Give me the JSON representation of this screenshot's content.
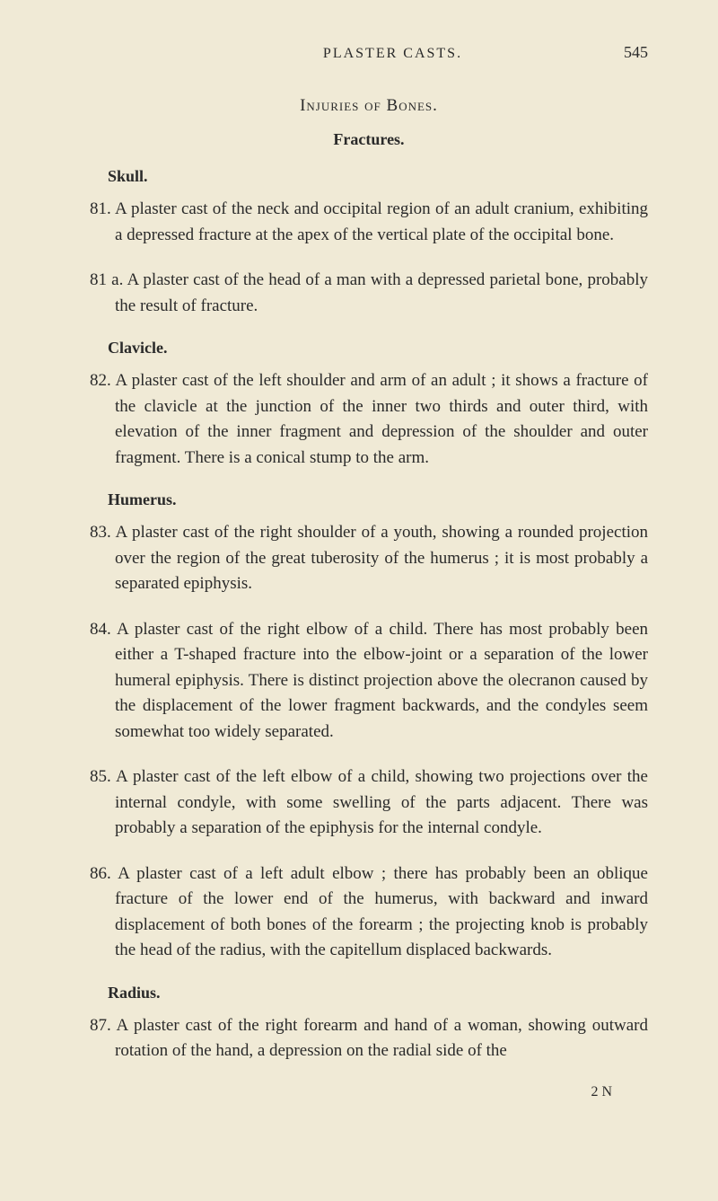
{
  "header": {
    "running_head": "PLASTER CASTS.",
    "page_number": "545"
  },
  "section_title": "Injuries of Bones.",
  "subsection_title": "Fractures.",
  "groups": [
    {
      "heading": "Skull.",
      "entries": [
        {
          "num": "81.",
          "text": "A plaster cast of the neck and occipital region of an adult cranium, exhibiting a depressed fracture at the apex of the vertical plate of the occipital bone."
        },
        {
          "num": "81 a.",
          "text": "A plaster cast of the head of a man with a depressed parietal bone, probably the result of fracture."
        }
      ]
    },
    {
      "heading": "Clavicle.",
      "entries": [
        {
          "num": "82.",
          "text": "A plaster cast of the left shoulder and arm of an adult ; it shows a fracture of the clavicle at the junction of the inner two thirds and outer third, with elevation of the inner fragment and depression of the shoulder and outer fragment. There is a conical stump to the arm."
        }
      ]
    },
    {
      "heading": "Humerus.",
      "entries": [
        {
          "num": "83.",
          "text": "A plaster cast of the right shoulder of a youth, showing a rounded projection over the region of the great tuberosity of the humerus ; it is most probably a separated epiphysis."
        },
        {
          "num": "84.",
          "text": "A plaster cast of the right elbow of a child. There has most probably been either a T-shaped fracture into the elbow-joint or a separation of the lower humeral epiphysis. There is distinct projection above the olecranon caused by the displacement of the lower fragment backwards, and the condyles seem somewhat too widely separated."
        },
        {
          "num": "85.",
          "text": "A plaster cast of the left elbow of a child, showing two projections over the internal condyle, with some swelling of the parts adjacent. There was probably a separation of the epiphysis for the internal condyle."
        },
        {
          "num": "86.",
          "text": "A plaster cast of a left adult elbow ; there has probably been an oblique fracture of the lower end of the humerus, with backward and inward displacement of both bones of the forearm ; the projecting knob is probably the head of the radius, with the capitellum displaced backwards."
        }
      ]
    },
    {
      "heading": "Radius.",
      "entries": [
        {
          "num": "87.",
          "text": "A plaster cast of the right forearm and hand of a woman, showing outward rotation of the hand, a depression on the radial side of the"
        }
      ]
    }
  ],
  "signature": "2 N",
  "styles": {
    "background_color": "#f0ead6",
    "text_color": "#2a2a2a",
    "body_fontsize": 19,
    "subhead_fontsize": 18,
    "header_fontsize": 16
  }
}
